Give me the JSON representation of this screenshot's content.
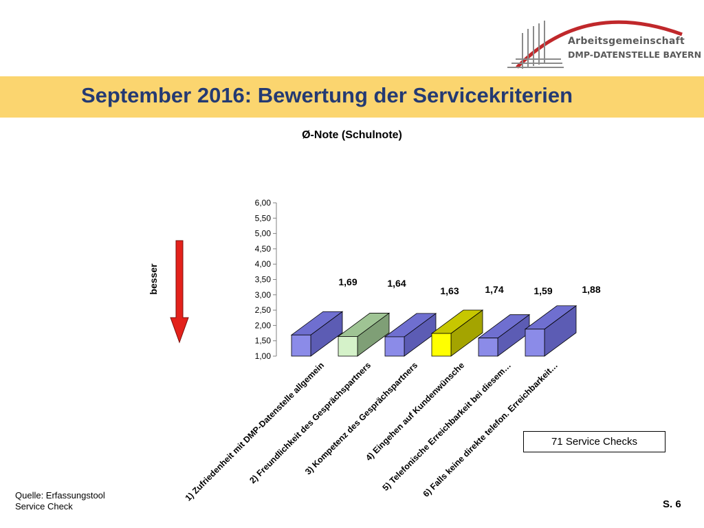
{
  "header": {
    "logo_line1": "Arbeitsgemeinschaft",
    "logo_line2": "DMP-DATENSTELLE BAYERN",
    "title": "September 2016: Bewertung der Servicekriterien"
  },
  "side_label": "besser",
  "colors": {
    "title_band": "#fbd56f",
    "title_text": "#243a73",
    "arrow": "#e3211b",
    "bar_blue": "#8b8be8",
    "bar_green": "#d5f2c9",
    "bar_yellow": "#ffff00"
  },
  "chart_data": {
    "type": "bar",
    "title": "Ø-Note (Schulnote)",
    "categories": [
      "1) Zufriedenheit mit DMP-Datenstelle allgemein",
      "2) Freundlichkeit des Gesprächspartners",
      "3) Kompetenz des Gesprächspartners",
      "4) Eingehen auf Kundenwünsche",
      "5) Telefonische Erreichbarkeit bei diesem…",
      "6) Falls keine direkte telefon. Erreichbarkeit…"
    ],
    "values": [
      1.69,
      1.64,
      1.63,
      1.74,
      1.59,
      1.88
    ],
    "value_labels": [
      "1,69",
      "1,64",
      "1,63",
      "1,74",
      "1,59",
      "1,88"
    ],
    "bar_colors": [
      "blue",
      "green",
      "blue",
      "yellow",
      "blue",
      "blue"
    ],
    "ylim": [
      1.0,
      6.0
    ],
    "yticks": [
      "1,00",
      "1,50",
      "2,00",
      "2,50",
      "3,00",
      "3,50",
      "4,00",
      "4,50",
      "5,00",
      "5,50",
      "6,00"
    ],
    "grid": false,
    "legend": "none"
  },
  "annotation": "71 Service Checks",
  "footer": {
    "source_line1": "Quelle: Erfassungstool",
    "source_line2": "Service Check",
    "page": "S. 6"
  }
}
